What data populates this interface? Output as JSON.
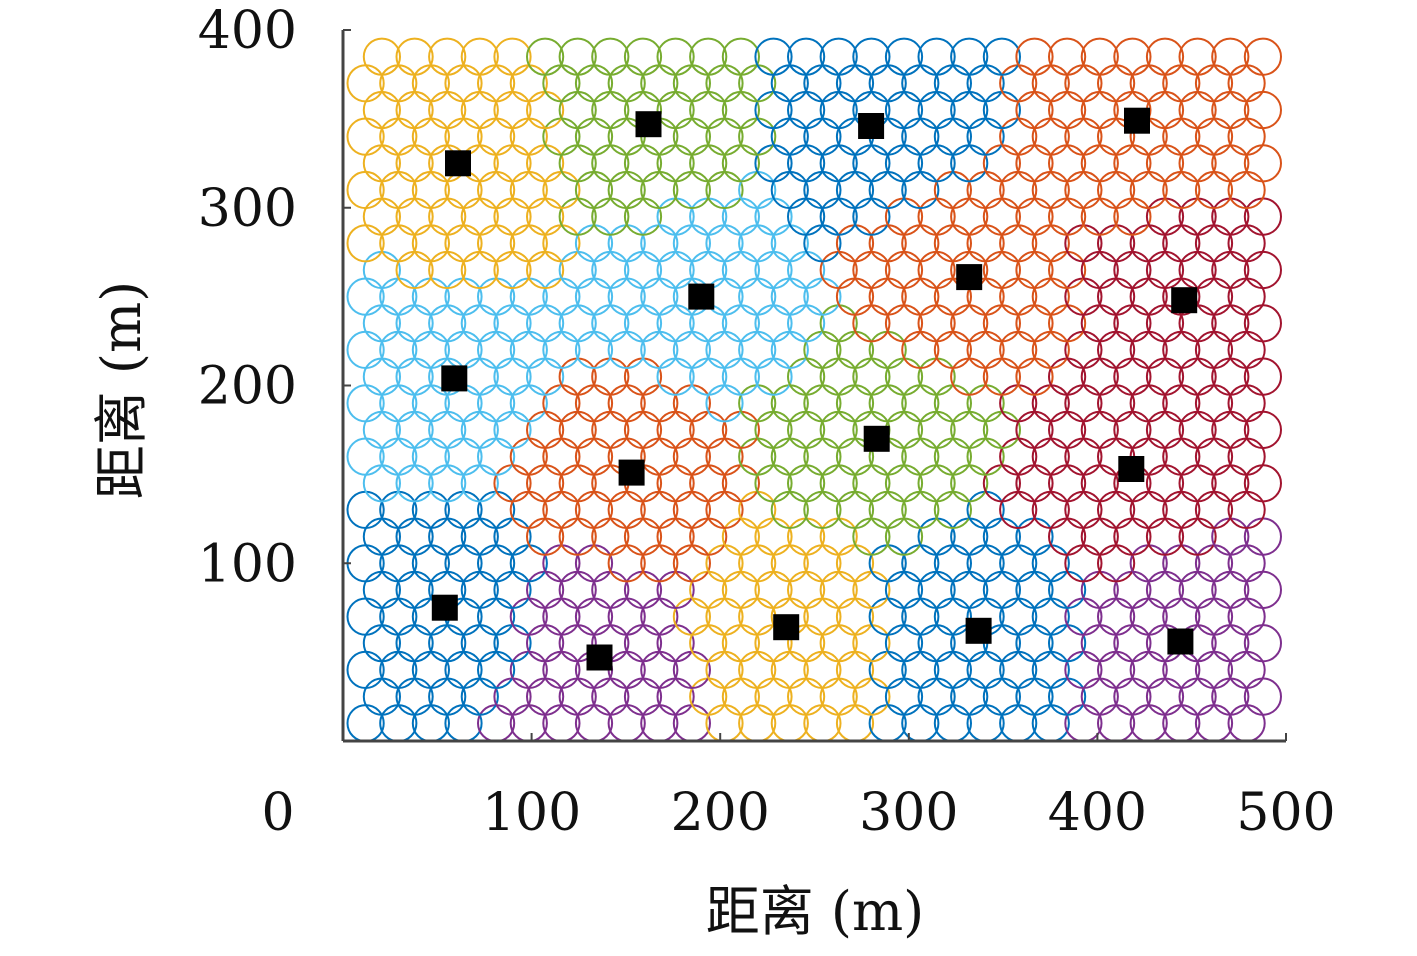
{
  "chart_data": {
    "type": "scatter",
    "title": "",
    "xlabel": "距离 (m)",
    "ylabel": "距离 (m)",
    "xlim": [
      0,
      500
    ],
    "ylim": [
      0,
      400
    ],
    "x_ticks": [
      "0",
      "100",
      "200",
      "300",
      "400",
      "500"
    ],
    "y_ticks": [
      "100",
      "200",
      "300",
      "400"
    ],
    "grid": false,
    "legend": "none",
    "colors": {
      "blue": "#0072BD",
      "orange": "#D95319",
      "yellow": "#EDB120",
      "purple": "#7E2F8E",
      "green": "#77AC30",
      "cyan": "#4DBEEE",
      "red": "#A2142F",
      "marker": "#000000",
      "axis": "#444444"
    },
    "cells": {
      "description_type": "hexagonal grid of sensor coverage circles colored by cluster",
      "radius": 9.6,
      "x_start": 12,
      "x_step": 17.3,
      "y_start": 10,
      "y_step": 15,
      "x_max": 494,
      "y_max": 396
    },
    "series": [
      {
        "color": "blue",
        "x": [
          54
        ],
        "y": [
          75
        ]
      },
      {
        "color": "purple",
        "x": [
          136
        ],
        "y": [
          47
        ]
      },
      {
        "color": "yellow",
        "x": [
          235
        ],
        "y": [
          64
        ]
      },
      {
        "color": "blue",
        "x": [
          337
        ],
        "y": [
          62
        ]
      },
      {
        "color": "purple",
        "x": [
          444
        ],
        "y": [
          56
        ]
      },
      {
        "color": "orange",
        "x": [
          153
        ],
        "y": [
          151
        ]
      },
      {
        "color": "green",
        "x": [
          283
        ],
        "y": [
          170
        ]
      },
      {
        "color": "red",
        "x": [
          418
        ],
        "y": [
          153
        ]
      },
      {
        "color": "cyan",
        "x": [
          59
        ],
        "y": [
          204
        ]
      },
      {
        "color": "cyan",
        "x": [
          190
        ],
        "y": [
          250
        ]
      },
      {
        "color": "orange",
        "x": [
          332
        ],
        "y": [
          261
        ]
      },
      {
        "color": "red",
        "x": [
          446
        ],
        "y": [
          248
        ]
      },
      {
        "color": "yellow",
        "x": [
          61
        ],
        "y": [
          325
        ]
      },
      {
        "color": "green",
        "x": [
          162
        ],
        "y": [
          347
        ]
      },
      {
        "color": "blue",
        "x": [
          280
        ],
        "y": [
          346
        ]
      },
      {
        "color": "orange",
        "x": [
          421
        ],
        "y": [
          349
        ]
      }
    ]
  }
}
